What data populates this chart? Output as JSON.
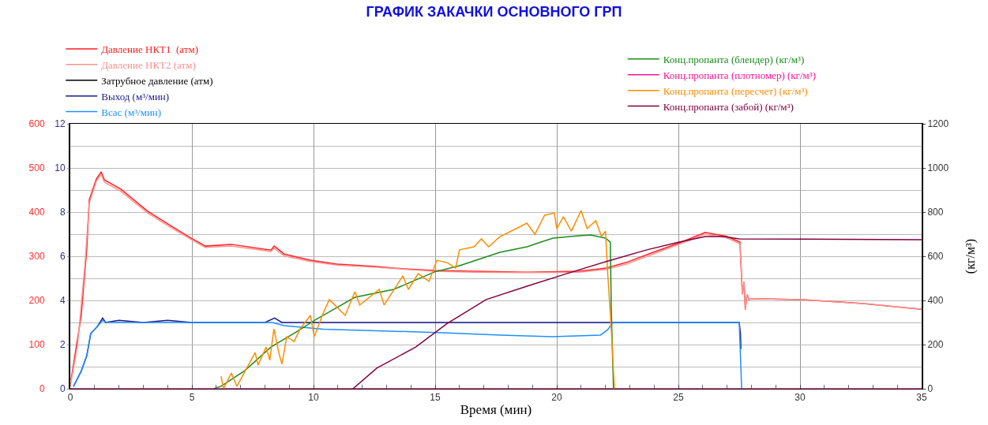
{
  "chart_data": {
    "type": "line",
    "title": "ГРАФИК ЗАКАЧКИ ОСНОВНОГО ГРП",
    "xlabel": "Время (мин)",
    "y3label": "(кг/м³)",
    "xlim": [
      0,
      35
    ],
    "xticks": [
      0,
      5,
      10,
      15,
      20,
      25,
      30,
      35
    ],
    "ylim": [
      0,
      600
    ],
    "yticks": [
      0,
      100,
      200,
      300,
      400,
      500,
      600
    ],
    "y2lim": [
      0,
      12
    ],
    "y2ticks": [
      0,
      2,
      4,
      6,
      8,
      10,
      12
    ],
    "y3lim": [
      0,
      1200
    ],
    "y3ticks": [
      0,
      200,
      400,
      600,
      800,
      1000,
      1200
    ],
    "grid": true,
    "legend": "top",
    "line_style": "solid",
    "series": [
      {
        "name": "Давление НКТ1  (атм)",
        "color": "#ff2020",
        "x": [
          0.03,
          0.45,
          0.68,
          0.78,
          1.07,
          1.27,
          1.4,
          2.08,
          3.18,
          4.16,
          4.97,
          5.55,
          6.62,
          8.25,
          8.38,
          8.8,
          9.87,
          10.97,
          12.6,
          13.3,
          14.97,
          16.6,
          18.77,
          20.9,
          22.0,
          22.86,
          23.96,
          25.03,
          26.1,
          26.98,
          27.53,
          27.56,
          27.63,
          27.7,
          27.75,
          27.82,
          27.9,
          28.05,
          30.0,
          32.6,
          35.0
        ],
        "values": [
          20,
          166,
          318,
          428,
          475,
          491,
          473,
          452,
          402,
          368,
          341,
          323,
          327,
          314,
          323,
          305,
          291,
          282,
          277,
          273,
          268,
          266,
          264,
          266,
          273,
          286,
          309,
          330,
          354,
          345,
          332,
          296,
          214,
          243,
          179,
          214,
          202,
          204,
          202,
          193,
          180
        ]
      },
      {
        "name": "Давление НКТ2 (атм)",
        "color": "#ff9090",
        "x": [
          0.0,
          0.3,
          0.6,
          0.78,
          1.07,
          1.27,
          1.4,
          2.08,
          3.18,
          4.16,
          4.97,
          5.55,
          6.62,
          8.25,
          8.38,
          8.8,
          9.87,
          10.97,
          12.6,
          14.97,
          16.6,
          18.77,
          20.9,
          22.0,
          22.86,
          23.96,
          25.03,
          26.1,
          26.98,
          27.53,
          27.56,
          27.63,
          27.7,
          27.75,
          27.82,
          27.9,
          28.05,
          30.0,
          32.6,
          35.0
        ],
        "values": [
          5,
          100,
          280,
          420,
          470,
          485,
          468,
          447,
          398,
          364,
          338,
          320,
          323,
          311,
          318,
          301,
          288,
          280,
          275,
          266,
          264,
          263,
          264,
          270,
          282,
          305,
          327,
          350,
          342,
          328,
          296,
          214,
          243,
          179,
          214,
          202,
          204,
          202,
          193,
          180
        ]
      },
      {
        "name": "Затрубное давление (атм)",
        "color": "#000000",
        "values": [
          null
        ]
      },
      {
        "name": "Выход (м³/мин)",
        "color": "#1a1a8c",
        "axis": "y2",
        "x": [
          0.13,
          0.45,
          0.68,
          0.84,
          1.1,
          1.33,
          1.45,
          2.0,
          3.0,
          4.0,
          5.0,
          6.0,
          7.0,
          8.0,
          8.4,
          8.7,
          10.0,
          15.0,
          20.0,
          25.0,
          27.5,
          27.55,
          27.57
        ],
        "values": [
          0.1,
          0.8,
          1.5,
          2.5,
          2.8,
          3.2,
          3.0,
          3.1,
          3.0,
          3.1,
          3.0,
          3.0,
          3.0,
          3.0,
          3.2,
          3.0,
          3.0,
          3.0,
          3.0,
          3.0,
          3.0,
          2.5,
          1.8
        ]
      },
      {
        "name": "Всас (м³/мин)",
        "color": "#1e90ff",
        "axis": "y2",
        "x": [
          0.13,
          0.45,
          0.68,
          0.84,
          1.1,
          1.33,
          1.45,
          3.0,
          5.0,
          7.0,
          8.3,
          8.8,
          10.4,
          15.3,
          17.7,
          19.8,
          21.8,
          22.1,
          22.3,
          25.0,
          27.5,
          27.6
        ],
        "values": [
          0.1,
          0.8,
          1.5,
          2.5,
          2.8,
          3.1,
          3.0,
          3.0,
          3.0,
          3.0,
          3.0,
          2.86,
          2.7,
          2.54,
          2.43,
          2.36,
          2.43,
          2.68,
          3.0,
          3.0,
          3.0,
          0
        ]
      },
      {
        "name": "Конц.пропанта (блендер) (кг/м³)",
        "color": "#1a8c1a",
        "axis": "y3",
        "x": [
          5.88,
          6.2,
          7.17,
          8.25,
          9.35,
          10.1,
          10.97,
          11.7,
          13.3,
          14.97,
          16.0,
          17.66,
          18.77,
          19.84,
          20.9,
          21.4,
          22.0,
          22.2,
          22.24,
          22.33
        ],
        "values": [
          0,
          11,
          82,
          189,
          261,
          314,
          368,
          414,
          450,
          529,
          557,
          618,
          643,
          682,
          693,
          696,
          682,
          664,
          368,
          0
        ]
      },
      {
        "name": "Конц.пропанта (плотномер) (кг/м³)",
        "color": "#ff1493",
        "axis": "y3",
        "x": [
          0,
          35
        ],
        "values": [
          0,
          0
        ]
      },
      {
        "name": "Конц.пропанта (пересчет) (кг/м³)",
        "color": "#ff8c00",
        "axis": "y3",
        "x": [
          6.2,
          6.3,
          6.62,
          6.85,
          7.6,
          7.72,
          8.05,
          8.2,
          8.37,
          8.57,
          8.7,
          8.9,
          9.2,
          9.45,
          9.87,
          10.03,
          10.4,
          10.65,
          11.3,
          11.7,
          11.9,
          12.7,
          12.9,
          13.67,
          13.9,
          14.3,
          14.75,
          15.07,
          15.5,
          15.84,
          16.0,
          16.6,
          16.9,
          17.2,
          17.66,
          18.2,
          18.77,
          19.1,
          19.5,
          19.9,
          20.0,
          20.27,
          20.6,
          21.0,
          21.25,
          21.6,
          21.84,
          22.0,
          22.1,
          22.22,
          22.37
        ],
        "values": [
          57,
          0,
          71,
          11,
          164,
          107,
          189,
          129,
          271,
          164,
          111,
          236,
          214,
          271,
          332,
          236,
          343,
          404,
          332,
          439,
          379,
          450,
          379,
          511,
          450,
          521,
          486,
          582,
          571,
          546,
          629,
          643,
          679,
          643,
          689,
          718,
          750,
          700,
          786,
          796,
          725,
          779,
          714,
          807,
          725,
          761,
          689,
          714,
          511,
          307,
          0
        ]
      },
      {
        "name": "Конц.пропанта (забой) (кг/м³)",
        "color": "#800040",
        "axis": "y3",
        "x": [
          11.62,
          12.6,
          14.2,
          15.5,
          17.1,
          18.77,
          20.4,
          22.0,
          23.7,
          25.03,
          26.1,
          26.88,
          27.5,
          35.0
        ],
        "values": [
          0,
          93,
          189,
          296,
          404,
          464,
          521,
          575,
          629,
          664,
          689,
          689,
          679,
          675
        ]
      }
    ]
  }
}
